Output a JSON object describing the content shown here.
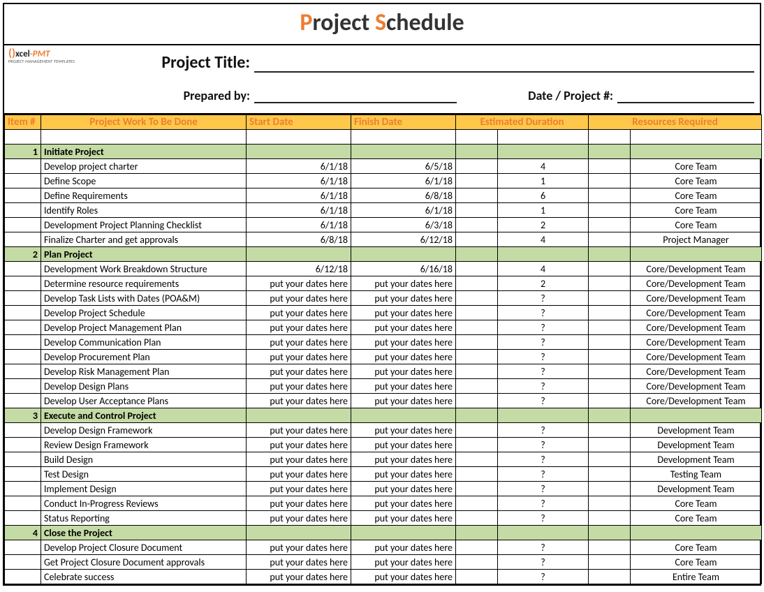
{
  "colors": {
    "accent": "#ed7d31",
    "header_bg": "#ffc84a",
    "section_bg": "#c5dba5",
    "border": "#000000",
    "text": "#111111"
  },
  "title": {
    "p": "P",
    "roject": "roject ",
    "s": "S",
    "chedule": "chedule"
  },
  "logo": {
    "brand_x": "xcel",
    "dash_pmt": "-PMT",
    "sub": "PROJECT MANAGEMENT TEMPLATES"
  },
  "meta": {
    "project_title_label": "Project Title:",
    "prepared_by_label": "Prepared by:",
    "date_project_label": "Date / Project #:"
  },
  "headers": {
    "item": "Item #",
    "work": "Project Work To Be Done",
    "start": "Start Date",
    "finish": "Finish Date",
    "duration": "Estimated Duration",
    "resources": "Resources Required"
  },
  "sections": [
    {
      "num": "1",
      "title": "Initiate Project",
      "rows": [
        {
          "work": "Develop project charter",
          "start": "6/1/18",
          "finish": "6/5/18",
          "dur": "4",
          "res": "Core Team"
        },
        {
          "work": "Define Scope",
          "start": "6/1/18",
          "finish": "6/1/18",
          "dur": "1",
          "res": "Core Team"
        },
        {
          "work": "Define Requirements",
          "start": "6/1/18",
          "finish": "6/8/18",
          "dur": "6",
          "res": "Core Team"
        },
        {
          "work": "Identify Roles",
          "start": "6/1/18",
          "finish": "6/1/18",
          "dur": "1",
          "res": "Core Team"
        },
        {
          "work": "Development Project Planning Checklist",
          "start": "6/1/18",
          "finish": "6/3/18",
          "dur": "2",
          "res": "Core Team"
        },
        {
          "work": "Finalize Charter and get approvals",
          "start": "6/8/18",
          "finish": "6/12/18",
          "dur": "4",
          "res": "Project Manager"
        }
      ]
    },
    {
      "num": "2",
      "title": "Plan Project",
      "rows": [
        {
          "work": "Development Work Breakdown Structure",
          "start": "6/12/18",
          "finish": "6/16/18",
          "dur": "4",
          "res": "Core/Development Team"
        },
        {
          "work": "Determine resource requirements",
          "start": "put your dates here",
          "finish": "put your dates here",
          "dur": "2",
          "res": "Core/Development Team"
        },
        {
          "work": "Develop Task Lists with Dates (POA&M)",
          "start": "put your dates here",
          "finish": "put your dates here",
          "dur": "?",
          "res": "Core/Development Team"
        },
        {
          "work": "Develop Project Schedule",
          "start": "put your dates here",
          "finish": "put your dates here",
          "dur": "?",
          "res": "Core/Development Team"
        },
        {
          "work": "Develop Project Management Plan",
          "start": "put your dates here",
          "finish": "put your dates here",
          "dur": "?",
          "res": "Core/Development Team"
        },
        {
          "work": "Develop Communication Plan",
          "start": "put your dates here",
          "finish": "put your dates here",
          "dur": "?",
          "res": "Core/Development Team"
        },
        {
          "work": "Develop Procurement Plan",
          "start": "put your dates here",
          "finish": "put your dates here",
          "dur": "?",
          "res": "Core/Development Team"
        },
        {
          "work": "Develop Risk Management Plan",
          "start": "put your dates here",
          "finish": "put your dates here",
          "dur": "?",
          "res": "Core/Development Team"
        },
        {
          "work": "Develop Design Plans",
          "start": "put your dates here",
          "finish": "put your dates here",
          "dur": "?",
          "res": "Core/Development Team"
        },
        {
          "work": "Develop User Acceptance Plans",
          "start": "put your dates here",
          "finish": "put your dates here",
          "dur": "?",
          "res": "Core/Development Team"
        }
      ]
    },
    {
      "num": "3",
      "title": "Execute and Control Project",
      "rows": [
        {
          "work": "Develop Design Framework",
          "start": "put your dates here",
          "finish": "put your dates here",
          "dur": "?",
          "res": "Development Team"
        },
        {
          "work": "Review Design Framework",
          "start": "put your dates here",
          "finish": "put your dates here",
          "dur": "?",
          "res": "Development Team"
        },
        {
          "work": "Build Design",
          "start": "put your dates here",
          "finish": "put your dates here",
          "dur": "?",
          "res": "Development Team"
        },
        {
          "work": "Test Design",
          "start": "put your dates here",
          "finish": "put your dates here",
          "dur": "?",
          "res": "Testing Team"
        },
        {
          "work": "Implement Design",
          "start": "put your dates here",
          "finish": "put your dates here",
          "dur": "?",
          "res": "Development Team"
        },
        {
          "work": "Conduct In-Progress Reviews",
          "start": "put your dates here",
          "finish": "put your dates here",
          "dur": "?",
          "res": "Core Team"
        },
        {
          "work": "Status Reporting",
          "start": "put your dates here",
          "finish": "put your dates here",
          "dur": "?",
          "res": "Core Team"
        }
      ]
    },
    {
      "num": "4",
      "title": "Close the Project",
      "rows": [
        {
          "work": "Develop Project Closure Document",
          "start": "put your dates here",
          "finish": "put your dates here",
          "dur": "?",
          "res": "Core Team"
        },
        {
          "work": "Get Project Closure Document approvals",
          "start": "put your dates here",
          "finish": "put your dates here",
          "dur": "?",
          "res": "Core Team"
        },
        {
          "work": "Celebrate success",
          "start": "put your dates here",
          "finish": "put your dates here",
          "dur": "?",
          "res": "Entire Team"
        }
      ]
    }
  ]
}
